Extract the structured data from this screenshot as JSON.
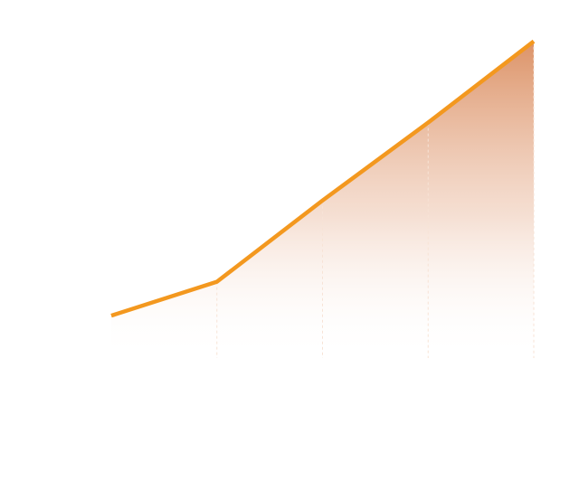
{
  "chart_data": {
    "type": "area",
    "x": [
      1,
      2,
      3,
      4,
      5
    ],
    "series": [
      {
        "values": [
          10,
          20,
          44,
          67,
          91
        ]
      }
    ],
    "xlim": [
      1,
      5
    ],
    "ylim": [
      -10,
      100
    ],
    "grid": false,
    "legend": "none",
    "line_color": "#F3981F",
    "fill_color_top": "#D9895A",
    "fill_color_bottom": "#FFFFFF",
    "divider_color": "#F7E3D6"
  }
}
